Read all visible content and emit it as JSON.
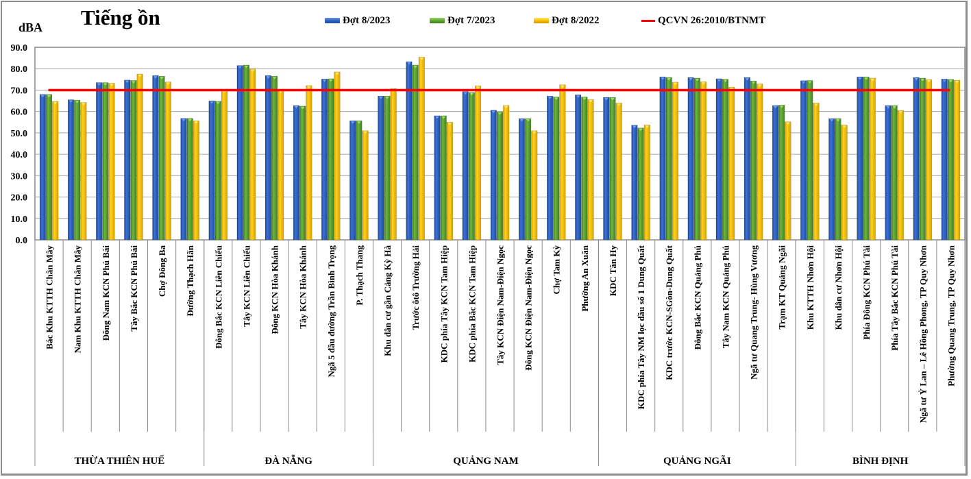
{
  "chart_data": {
    "type": "bar",
    "title": "Tiếng ồn",
    "ylabel": "dBA",
    "xlabel": "",
    "ylim": [
      0,
      90
    ],
    "yticks": [
      "0.0",
      "10.0",
      "20.0",
      "30.0",
      "40.0",
      "50.0",
      "60.0",
      "70.0",
      "80.0",
      "90.0"
    ],
    "grid": true,
    "legend_position": "top",
    "categories": [
      "Bác Khu KTTH Chân Mây",
      "Nam Khu KTTH Chân Mây",
      "Đông Nam KCN Phú Bài",
      "Tây Bắc KCN Phú Bài",
      "Chợ Đông Ba",
      "Đường Thạch Hãn",
      "Đông Bắc KCN Liên  Chiểu",
      "Tây KCN Liên  Chiểu",
      "Đông KCN Hòa Khánh",
      "Tây KCN Hòa Khánh",
      "Ngã 5 đầu đường Trần Bình Trọng",
      "P. Thạch Thang",
      "Khu dân cư gần Cảng Kỳ Hà",
      "Trước ôtô Trường Hải",
      "KDC phía Tây KCN Tam Hiệp",
      "KDC phía Bắc KCN Tam Hiệp",
      "Tây KCN Điện Nam-Điện Ngọc",
      "Đông KCN Điện Nam-Điện Ngọc",
      "Chợ Tam Kỳ",
      "Phường An Xuân",
      "KDC Tân Hy",
      "KDC phía Tây NM lọc dầu số 1 Dung Quất",
      "KDC trước KCN-SGòn-Dung Quất",
      "Đông Bắc KCN Quảng Phú",
      "Tây Nam KCN Quảng Phú",
      "Ngã tư Quang Trung- Hùng Vương",
      "Trạm KT Quảng Ngãi",
      "Khu KTTH Nhơn Hội",
      "Khu dân cư Nhơn Hội",
      "Phía Đông KCN Phú Tài",
      "Phía Tây Bắc KCN Phú Tài",
      "Ngã tư Ỷ Lan – Lê Hồng Phong, TP Quy Nhơn",
      "Phường Quang Trung, TP Quy Nhơn"
    ],
    "groups": [
      {
        "name": "THỪA THIÊN HUẾ",
        "count": 6
      },
      {
        "name": "ĐÀ NẴNG",
        "count": 6
      },
      {
        "name": "QUẢNG NAM",
        "count": 8
      },
      {
        "name": "QUẢNG NGÃI",
        "count": 7
      },
      {
        "name": "BÌNH ĐỊNH",
        "count": 6
      }
    ],
    "series": [
      {
        "name": "Đợt 8/2023",
        "color": "#2f63c4",
        "values": [
          68.0,
          65.5,
          73.5,
          74.7,
          76.8,
          56.8,
          65.0,
          81.5,
          76.8,
          62.8,
          75.2,
          55.7,
          67.2,
          83.3,
          58.0,
          69.3,
          60.6,
          56.7,
          67.2,
          67.8,
          66.6,
          53.6,
          76.2,
          75.9,
          75.3,
          75.9,
          62.8,
          74.4,
          56.7,
          76.2,
          62.8,
          75.9,
          75.2
        ]
      },
      {
        "name": "Đợt 7/2023",
        "color": "#5fa632",
        "values": [
          68.0,
          65.3,
          73.5,
          74.5,
          76.5,
          56.8,
          64.8,
          81.7,
          76.5,
          62.5,
          75.3,
          55.7,
          67.2,
          81.7,
          58.0,
          68.9,
          59.8,
          56.7,
          66.8,
          66.8,
          66.6,
          52.3,
          75.9,
          75.6,
          75.1,
          74.3,
          63.0,
          74.5,
          56.7,
          76.2,
          62.8,
          75.6,
          75.0
        ]
      },
      {
        "name": "Đợt 8/2022",
        "color": "#ffc000",
        "values": [
          64.7,
          64.2,
          73.2,
          77.5,
          73.8,
          55.7,
          70.0,
          79.9,
          70.0,
          72.1,
          78.5,
          51.0,
          70.7,
          85.4,
          55.0,
          72.0,
          62.8,
          51.0,
          72.5,
          65.6,
          64.0,
          53.7,
          73.7,
          73.9,
          71.4,
          72.9,
          55.2,
          64.0,
          53.7,
          75.6,
          60.5,
          74.9,
          74.6
        ]
      }
    ],
    "reference_line": {
      "name": "QCVN 26:2010/BTNMT",
      "value": 70.0,
      "color": "#ff0000"
    }
  }
}
